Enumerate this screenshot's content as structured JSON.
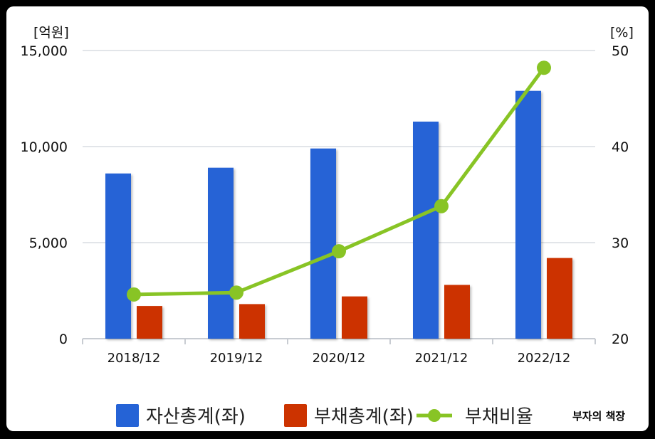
{
  "chart_data": {
    "type": "bar",
    "categories": [
      "2018/12",
      "2019/12",
      "2020/12",
      "2021/12",
      "2022/12"
    ],
    "series": [
      {
        "name": "자산총계(좌)",
        "type": "bar",
        "axis": "left",
        "color": "#2563d6",
        "values": [
          8600,
          8900,
          9900,
          11300,
          12900
        ]
      },
      {
        "name": "부채총계(좌)",
        "type": "bar",
        "axis": "left",
        "color": "#cc3300",
        "values": [
          1700,
          1800,
          2200,
          2800,
          4200
        ]
      },
      {
        "name": "부채비율",
        "type": "line",
        "axis": "right",
        "color": "#88c425",
        "values": [
          24.6,
          24.8,
          29.1,
          33.8,
          48.2
        ]
      }
    ],
    "y_left": {
      "unit_label": "[억원]",
      "range": [
        0,
        15000
      ],
      "ticks": [
        0,
        5000,
        10000,
        15000
      ],
      "tick_labels": [
        "0",
        "5,000",
        "10,000",
        "15,000"
      ]
    },
    "y_right": {
      "unit_label": "[%]",
      "range": [
        20,
        50
      ],
      "ticks": [
        20,
        30,
        40,
        50
      ],
      "tick_labels": [
        "20",
        "30",
        "40",
        "50"
      ]
    },
    "grid": true,
    "legend_position": "bottom"
  },
  "watermark": "부자의 책장"
}
